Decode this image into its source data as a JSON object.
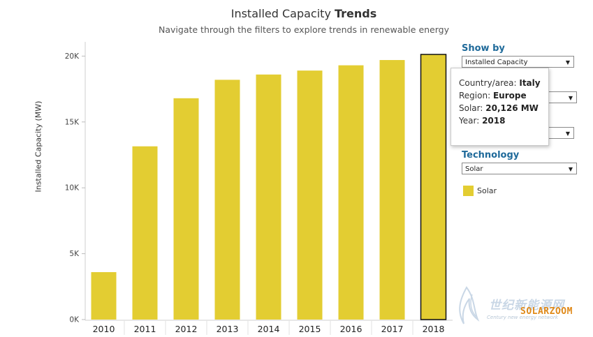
{
  "header": {
    "title_plain": "Installed Capacity",
    "title_bold": "Trends",
    "subtitle": "Navigate through the filters to explore trends in renewable energy"
  },
  "filters": {
    "show_by_label": "Show by",
    "show_by_value": "Installed Capacity",
    "technology_label": "Technology",
    "technology_value": "Solar"
  },
  "legend": {
    "label": "Solar",
    "color": "#e3cd32"
  },
  "tooltip": {
    "country_label": "Country/area:",
    "country_value": "Italy",
    "region_label": "Region:",
    "region_value": "Europe",
    "solar_label": "Solar:",
    "solar_value": "20,126 MW",
    "year_label": "Year:",
    "year_value": "2018"
  },
  "watermark": {
    "cn": "世纪新能源网",
    "en": "Century new energy network",
    "logo": "SOLARZOOM"
  },
  "chart_data": {
    "type": "bar",
    "ylabel": "Installed Capacity (MW)",
    "xlabel": "",
    "categories": [
      "2010",
      "2011",
      "2012",
      "2013",
      "2014",
      "2015",
      "2016",
      "2017",
      "2018"
    ],
    "series": [
      {
        "name": "Solar",
        "values": [
          3600,
          13150,
          16800,
          18200,
          18600,
          18900,
          19300,
          19700,
          20126
        ]
      }
    ],
    "ylim": [
      0,
      20126
    ],
    "yticks": [
      0,
      5000,
      10000,
      15000,
      20000
    ],
    "ytick_labels": [
      "0K",
      "5K",
      "10K",
      "15K",
      "20K"
    ],
    "highlighted_category": "2018",
    "bar_color": "#e3cd32",
    "grid": false,
    "legend_position": "right"
  }
}
